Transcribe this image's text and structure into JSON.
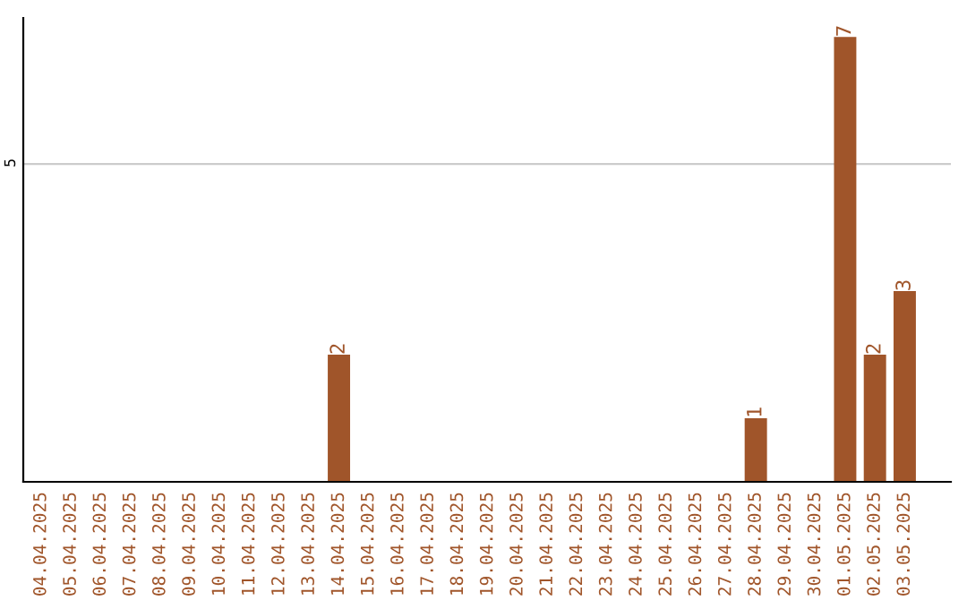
{
  "chart_data": {
    "type": "bar",
    "categories": [
      "04.04.2025",
      "05.04.2025",
      "06.04.2025",
      "07.04.2025",
      "08.04.2025",
      "09.04.2025",
      "10.04.2025",
      "11.04.2025",
      "12.04.2025",
      "13.04.2025",
      "14.04.2025",
      "15.04.2025",
      "16.04.2025",
      "17.04.2025",
      "18.04.2025",
      "19.04.2025",
      "20.04.2025",
      "21.04.2025",
      "22.04.2025",
      "23.04.2025",
      "24.04.2025",
      "25.04.2025",
      "26.04.2025",
      "27.04.2025",
      "28.04.2025",
      "29.04.2025",
      "30.04.2025",
      "01.05.2025",
      "02.05.2025",
      "03.05.2025"
    ],
    "values": [
      0,
      0,
      0,
      0,
      0,
      0,
      0,
      0,
      0,
      0,
      2,
      0,
      0,
      0,
      0,
      0,
      0,
      0,
      0,
      0,
      0,
      0,
      0,
      0,
      1,
      0,
      0,
      7,
      2,
      3
    ],
    "value_labels": [
      null,
      null,
      null,
      null,
      null,
      null,
      null,
      null,
      null,
      null,
      "2",
      null,
      null,
      null,
      null,
      null,
      null,
      null,
      null,
      null,
      null,
      null,
      null,
      null,
      "1",
      null,
      null,
      "7",
      "2",
      "3"
    ],
    "color": "#a0552a",
    "ylim": [
      0,
      7.3
    ],
    "yticks": [
      5
    ],
    "grid": "y",
    "legend": false
  }
}
